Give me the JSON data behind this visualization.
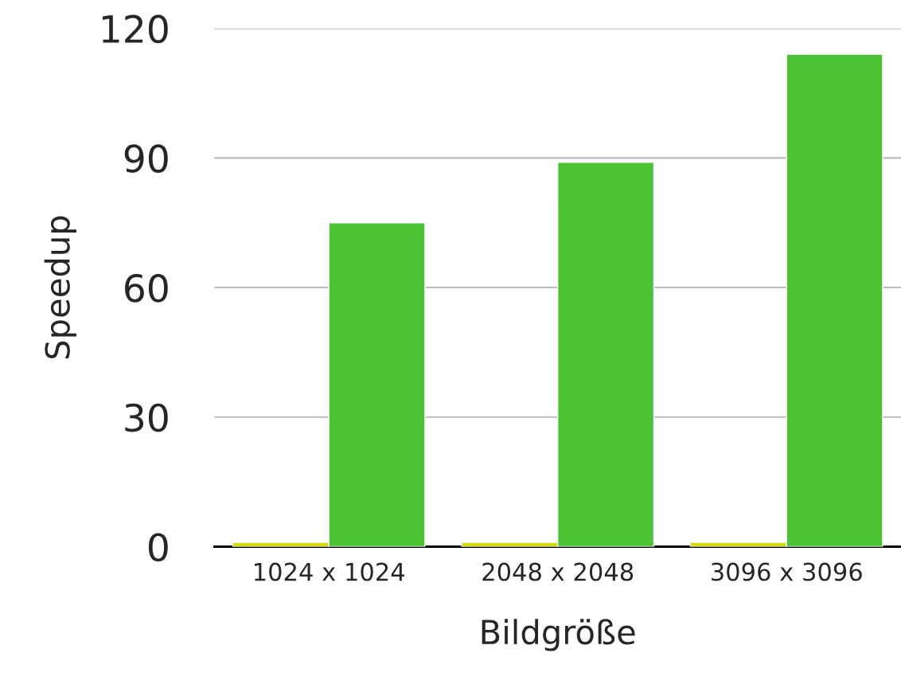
{
  "chart_data": {
    "type": "bar",
    "xlabel": "Bildgröße",
    "ylabel": "Speedup",
    "categories": [
      "1024 x 1024",
      "2048 x 2048",
      "3096 x 3096"
    ],
    "series": [
      {
        "color": "#d4dc00",
        "values": [
          1,
          1,
          1
        ]
      },
      {
        "color": "#4cc235",
        "values": [
          75,
          89,
          114
        ]
      }
    ],
    "ylim": [
      0,
      120
    ],
    "yticks": [
      0,
      30,
      60,
      90,
      120
    ],
    "grid": "y",
    "legend": false
  }
}
